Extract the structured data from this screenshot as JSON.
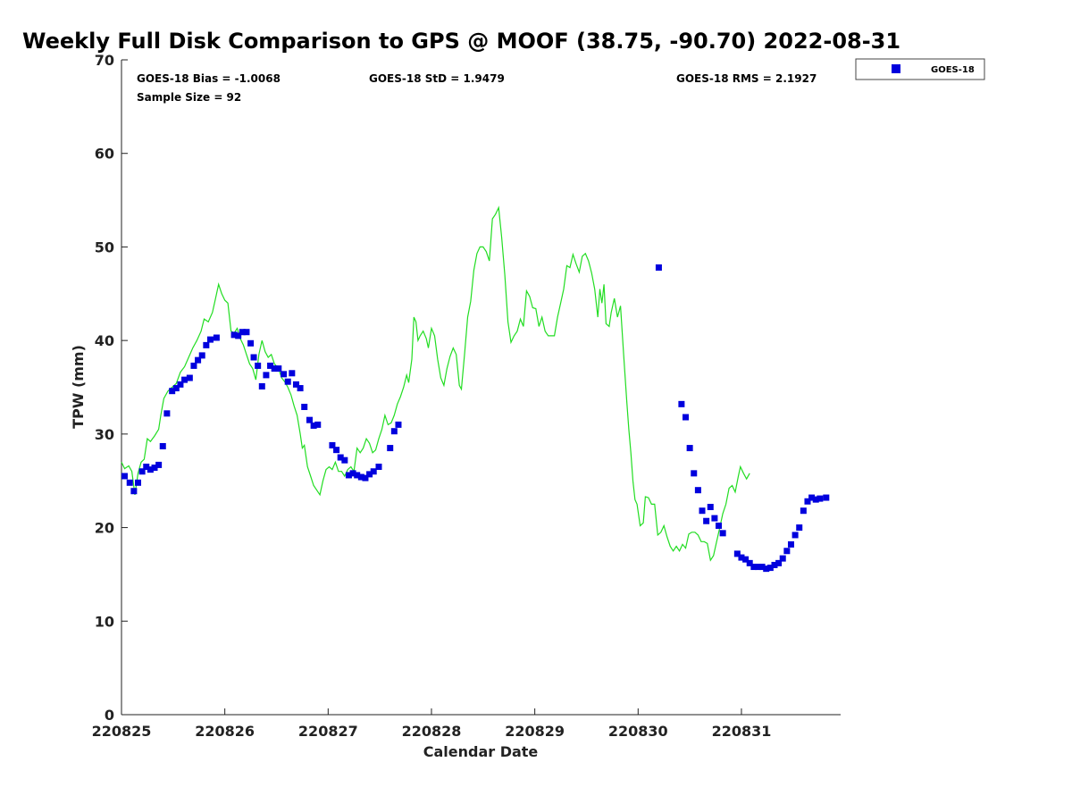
{
  "chart_data": {
    "type": "scatter",
    "title": "Weekly Full Disk Comparison to GPS @ MOOF (38.75, -90.70) 2022-08-31",
    "xlabel": "Calendar Date",
    "ylabel": "TPW (mm)",
    "xlim": [
      0,
      6.96
    ],
    "ylim": [
      0,
      70
    ],
    "x_tick_values": [
      0,
      1,
      2,
      3,
      4,
      5,
      6
    ],
    "x_tick_labels": [
      "220825",
      "220826",
      "220827",
      "220828",
      "220829",
      "220830",
      "220831"
    ],
    "y_ticks": [
      0,
      10,
      20,
      30,
      40,
      50,
      60,
      70
    ],
    "grid": false,
    "stats": {
      "bias": "GOES-18 Bias = -1.0068",
      "std": "GOES-18 StD = 1.9479",
      "rms": "GOES-18 RMS = 2.1927",
      "sample": "Sample Size = 92"
    },
    "legend": {
      "position": "top-right",
      "entries": [
        "GOES-18"
      ]
    },
    "colors": {
      "goes": "#0000dd",
      "gps": "#22dd22"
    },
    "series": [
      {
        "name": "GPS",
        "kind": "line",
        "points": [
          [
            0,
            27
          ],
          [
            0.03,
            26.3
          ],
          [
            0.07,
            26.6
          ],
          [
            0.1,
            26
          ],
          [
            0.13,
            23.5
          ],
          [
            0.16,
            25.8
          ],
          [
            0.19,
            27
          ],
          [
            0.22,
            27.3
          ],
          [
            0.25,
            29.5
          ],
          [
            0.28,
            29.2
          ],
          [
            0.32,
            29.8
          ],
          [
            0.36,
            30.5
          ],
          [
            0.38,
            32
          ],
          [
            0.41,
            33.8
          ],
          [
            0.45,
            34.6
          ],
          [
            0.49,
            35
          ],
          [
            0.53,
            35.4
          ],
          [
            0.57,
            36.6
          ],
          [
            0.61,
            37.2
          ],
          [
            0.65,
            38.2
          ],
          [
            0.69,
            39.2
          ],
          [
            0.73,
            40
          ],
          [
            0.77,
            41
          ],
          [
            0.8,
            42.3
          ],
          [
            0.84,
            42
          ],
          [
            0.88,
            43
          ],
          [
            0.91,
            44.5
          ],
          [
            0.94,
            46
          ],
          [
            0.97,
            45
          ],
          [
            1.0,
            44.3
          ],
          [
            1.03,
            44
          ],
          [
            1.06,
            41
          ],
          [
            1.09,
            40.8
          ],
          [
            1.12,
            41.3
          ],
          [
            1.15,
            40.2
          ],
          [
            1.18,
            39.5
          ],
          [
            1.21,
            38.5
          ],
          [
            1.24,
            37.5
          ],
          [
            1.27,
            37
          ],
          [
            1.3,
            35.8
          ],
          [
            1.33,
            38.5
          ],
          [
            1.36,
            40
          ],
          [
            1.39,
            38.8
          ],
          [
            1.42,
            38.2
          ],
          [
            1.45,
            38.5
          ],
          [
            1.48,
            37.5
          ],
          [
            1.52,
            37
          ],
          [
            1.55,
            36
          ],
          [
            1.58,
            35.6
          ],
          [
            1.61,
            35
          ],
          [
            1.64,
            34.2
          ],
          [
            1.67,
            33
          ],
          [
            1.7,
            32
          ],
          [
            1.73,
            30
          ],
          [
            1.75,
            28.5
          ],
          [
            1.77,
            28.8
          ],
          [
            1.8,
            26.5
          ],
          [
            1.83,
            25.5
          ],
          [
            1.86,
            24.5
          ],
          [
            1.89,
            24
          ],
          [
            1.92,
            23.5
          ],
          [
            1.95,
            25
          ],
          [
            1.98,
            26.2
          ],
          [
            2.01,
            26.5
          ],
          [
            2.04,
            26.2
          ],
          [
            2.07,
            27
          ],
          [
            2.1,
            26
          ],
          [
            2.13,
            26
          ],
          [
            2.16,
            25.5
          ],
          [
            2.19,
            26.2
          ],
          [
            2.22,
            26.5
          ],
          [
            2.25,
            26
          ],
          [
            2.28,
            28.5
          ],
          [
            2.31,
            28
          ],
          [
            2.34,
            28.5
          ],
          [
            2.37,
            29.5
          ],
          [
            2.4,
            29
          ],
          [
            2.43,
            28
          ],
          [
            2.46,
            28.3
          ],
          [
            2.49,
            29.5
          ],
          [
            2.52,
            30.5
          ],
          [
            2.55,
            32
          ],
          [
            2.58,
            31
          ],
          [
            2.61,
            31.2
          ],
          [
            2.64,
            32
          ],
          [
            2.67,
            33.2
          ],
          [
            2.7,
            34
          ],
          [
            2.73,
            35
          ],
          [
            2.76,
            36.3
          ],
          [
            2.78,
            35.5
          ],
          [
            2.81,
            38
          ],
          [
            2.83,
            42.5
          ],
          [
            2.85,
            42
          ],
          [
            2.87,
            40
          ],
          [
            2.89,
            40.5
          ],
          [
            2.92,
            41
          ],
          [
            2.95,
            40.2
          ],
          [
            2.97,
            39.2
          ],
          [
            3.0,
            41.3
          ],
          [
            3.03,
            40.5
          ],
          [
            3.06,
            38
          ],
          [
            3.09,
            36
          ],
          [
            3.12,
            35.2
          ],
          [
            3.15,
            37
          ],
          [
            3.18,
            38.3
          ],
          [
            3.21,
            39.2
          ],
          [
            3.24,
            38.5
          ],
          [
            3.27,
            35.2
          ],
          [
            3.29,
            34.8
          ],
          [
            3.32,
            38.5
          ],
          [
            3.35,
            42.5
          ],
          [
            3.38,
            44.2
          ],
          [
            3.41,
            47.5
          ],
          [
            3.44,
            49.3
          ],
          [
            3.47,
            50
          ],
          [
            3.5,
            50
          ],
          [
            3.53,
            49.5
          ],
          [
            3.56,
            48.5
          ],
          [
            3.59,
            53
          ],
          [
            3.62,
            53.5
          ],
          [
            3.65,
            54.2
          ],
          [
            3.68,
            51
          ],
          [
            3.71,
            47
          ],
          [
            3.74,
            42
          ],
          [
            3.77,
            39.8
          ],
          [
            3.8,
            40.5
          ],
          [
            3.83,
            41
          ],
          [
            3.86,
            42.3
          ],
          [
            3.89,
            41.5
          ],
          [
            3.92,
            45.3
          ],
          [
            3.95,
            44.7
          ],
          [
            3.98,
            43.5
          ],
          [
            4.01,
            43.4
          ],
          [
            4.04,
            41.5
          ],
          [
            4.07,
            42.5
          ],
          [
            4.1,
            41
          ],
          [
            4.13,
            40.5
          ],
          [
            4.16,
            40.5
          ],
          [
            4.19,
            40.5
          ],
          [
            4.22,
            42.5
          ],
          [
            4.25,
            44
          ],
          [
            4.28,
            45.5
          ],
          [
            4.31,
            48
          ],
          [
            4.34,
            47.8
          ],
          [
            4.37,
            49.2
          ],
          [
            4.4,
            48.2
          ],
          [
            4.43,
            47.3
          ],
          [
            4.46,
            49
          ],
          [
            4.49,
            49.3
          ],
          [
            4.52,
            48.5
          ],
          [
            4.55,
            47.2
          ],
          [
            4.58,
            45.5
          ],
          [
            4.61,
            42.5
          ],
          [
            4.63,
            45.5
          ],
          [
            4.65,
            44
          ],
          [
            4.67,
            46
          ],
          [
            4.69,
            41.8
          ],
          [
            4.72,
            41.5
          ],
          [
            4.74,
            43
          ],
          [
            4.77,
            44.5
          ],
          [
            4.8,
            42.5
          ],
          [
            4.83,
            43.7
          ],
          [
            4.86,
            38.5
          ],
          [
            4.89,
            33.5
          ],
          [
            4.91,
            30.5
          ],
          [
            4.93,
            28
          ],
          [
            4.95,
            25
          ],
          [
            4.97,
            23
          ],
          [
            4.99,
            22.5
          ],
          [
            5.02,
            20.2
          ],
          [
            5.05,
            20.5
          ],
          [
            5.07,
            23.3
          ],
          [
            5.1,
            23.2
          ],
          [
            5.13,
            22.5
          ],
          [
            5.16,
            22.5
          ],
          [
            5.19,
            19.2
          ],
          [
            5.22,
            19.5
          ],
          [
            5.25,
            20.2
          ],
          [
            5.28,
            19
          ],
          [
            5.31,
            18
          ],
          [
            5.34,
            17.5
          ],
          [
            5.37,
            18
          ],
          [
            5.4,
            17.5
          ],
          [
            5.43,
            18.2
          ],
          [
            5.46,
            17.8
          ],
          [
            5.49,
            19.3
          ],
          [
            5.52,
            19.5
          ],
          [
            5.55,
            19.5
          ],
          [
            5.58,
            19.2
          ],
          [
            5.61,
            18.5
          ],
          [
            5.64,
            18.5
          ],
          [
            5.67,
            18.3
          ],
          [
            5.7,
            16.5
          ],
          [
            5.73,
            17
          ],
          [
            5.76,
            18.5
          ],
          [
            5.79,
            20
          ],
          [
            5.82,
            21.5
          ],
          [
            5.85,
            22.5
          ],
          [
            5.88,
            24.2
          ],
          [
            5.91,
            24.5
          ],
          [
            5.94,
            23.8
          ],
          [
            5.97,
            25.5
          ],
          [
            5.99,
            26.5
          ],
          [
            6.02,
            25.8
          ],
          [
            6.05,
            25.2
          ],
          [
            6.08,
            25.8
          ]
        ]
      },
      {
        "name": "GOES-18",
        "kind": "scatter",
        "points": [
          [
            0.03,
            25.5
          ],
          [
            0.08,
            24.8
          ],
          [
            0.12,
            23.9
          ],
          [
            0.16,
            24.8
          ],
          [
            0.2,
            26
          ],
          [
            0.24,
            26.5
          ],
          [
            0.28,
            26.2
          ],
          [
            0.32,
            26.4
          ],
          [
            0.36,
            26.7
          ],
          [
            0.4,
            28.7
          ],
          [
            0.44,
            32.2
          ],
          [
            0.49,
            34.6
          ],
          [
            0.53,
            34.9
          ],
          [
            0.57,
            35.3
          ],
          [
            0.61,
            35.8
          ],
          [
            0.66,
            36
          ],
          [
            0.7,
            37.3
          ],
          [
            0.74,
            37.9
          ],
          [
            0.78,
            38.4
          ],
          [
            0.82,
            39.5
          ],
          [
            0.86,
            40.1
          ],
          [
            0.92,
            40.3
          ],
          [
            1.09,
            40.6
          ],
          [
            1.13,
            40.5
          ],
          [
            1.17,
            40.9
          ],
          [
            1.21,
            40.9
          ],
          [
            1.25,
            39.7
          ],
          [
            1.28,
            38.2
          ],
          [
            1.32,
            37.3
          ],
          [
            1.36,
            35.1
          ],
          [
            1.4,
            36.3
          ],
          [
            1.44,
            37.3
          ],
          [
            1.48,
            37
          ],
          [
            1.52,
            37
          ],
          [
            1.57,
            36.4
          ],
          [
            1.61,
            35.6
          ],
          [
            1.65,
            36.5
          ],
          [
            1.69,
            35.3
          ],
          [
            1.73,
            34.9
          ],
          [
            1.77,
            32.9
          ],
          [
            1.82,
            31.5
          ],
          [
            1.86,
            30.9
          ],
          [
            1.9,
            31
          ],
          [
            2.04,
            28.8
          ],
          [
            2.08,
            28.3
          ],
          [
            2.12,
            27.5
          ],
          [
            2.16,
            27.2
          ],
          [
            2.2,
            25.6
          ],
          [
            2.24,
            25.8
          ],
          [
            2.28,
            25.6
          ],
          [
            2.32,
            25.4
          ],
          [
            2.36,
            25.3
          ],
          [
            2.4,
            25.7
          ],
          [
            2.44,
            26
          ],
          [
            2.49,
            26.5
          ],
          [
            2.6,
            28.5
          ],
          [
            2.64,
            30.3
          ],
          [
            2.68,
            31
          ],
          [
            5.2,
            47.8
          ],
          [
            5.42,
            33.2
          ],
          [
            5.46,
            31.8
          ],
          [
            5.5,
            28.5
          ],
          [
            5.54,
            25.8
          ],
          [
            5.58,
            24
          ],
          [
            5.62,
            21.8
          ],
          [
            5.66,
            20.7
          ],
          [
            5.7,
            22.2
          ],
          [
            5.74,
            21
          ],
          [
            5.78,
            20.2
          ],
          [
            5.82,
            19.4
          ],
          [
            5.96,
            17.2
          ],
          [
            6.0,
            16.8
          ],
          [
            6.04,
            16.6
          ],
          [
            6.08,
            16.2
          ],
          [
            6.12,
            15.8
          ],
          [
            6.16,
            15.8
          ],
          [
            6.2,
            15.8
          ],
          [
            6.24,
            15.6
          ],
          [
            6.28,
            15.7
          ],
          [
            6.32,
            16
          ],
          [
            6.36,
            16.2
          ],
          [
            6.4,
            16.7
          ],
          [
            6.44,
            17.5
          ],
          [
            6.48,
            18.2
          ],
          [
            6.52,
            19.2
          ],
          [
            6.56,
            20
          ],
          [
            6.6,
            21.8
          ],
          [
            6.64,
            22.8
          ],
          [
            6.68,
            23.2
          ],
          [
            6.72,
            23
          ],
          [
            6.76,
            23.1
          ],
          [
            6.82,
            23.2
          ]
        ]
      }
    ]
  }
}
